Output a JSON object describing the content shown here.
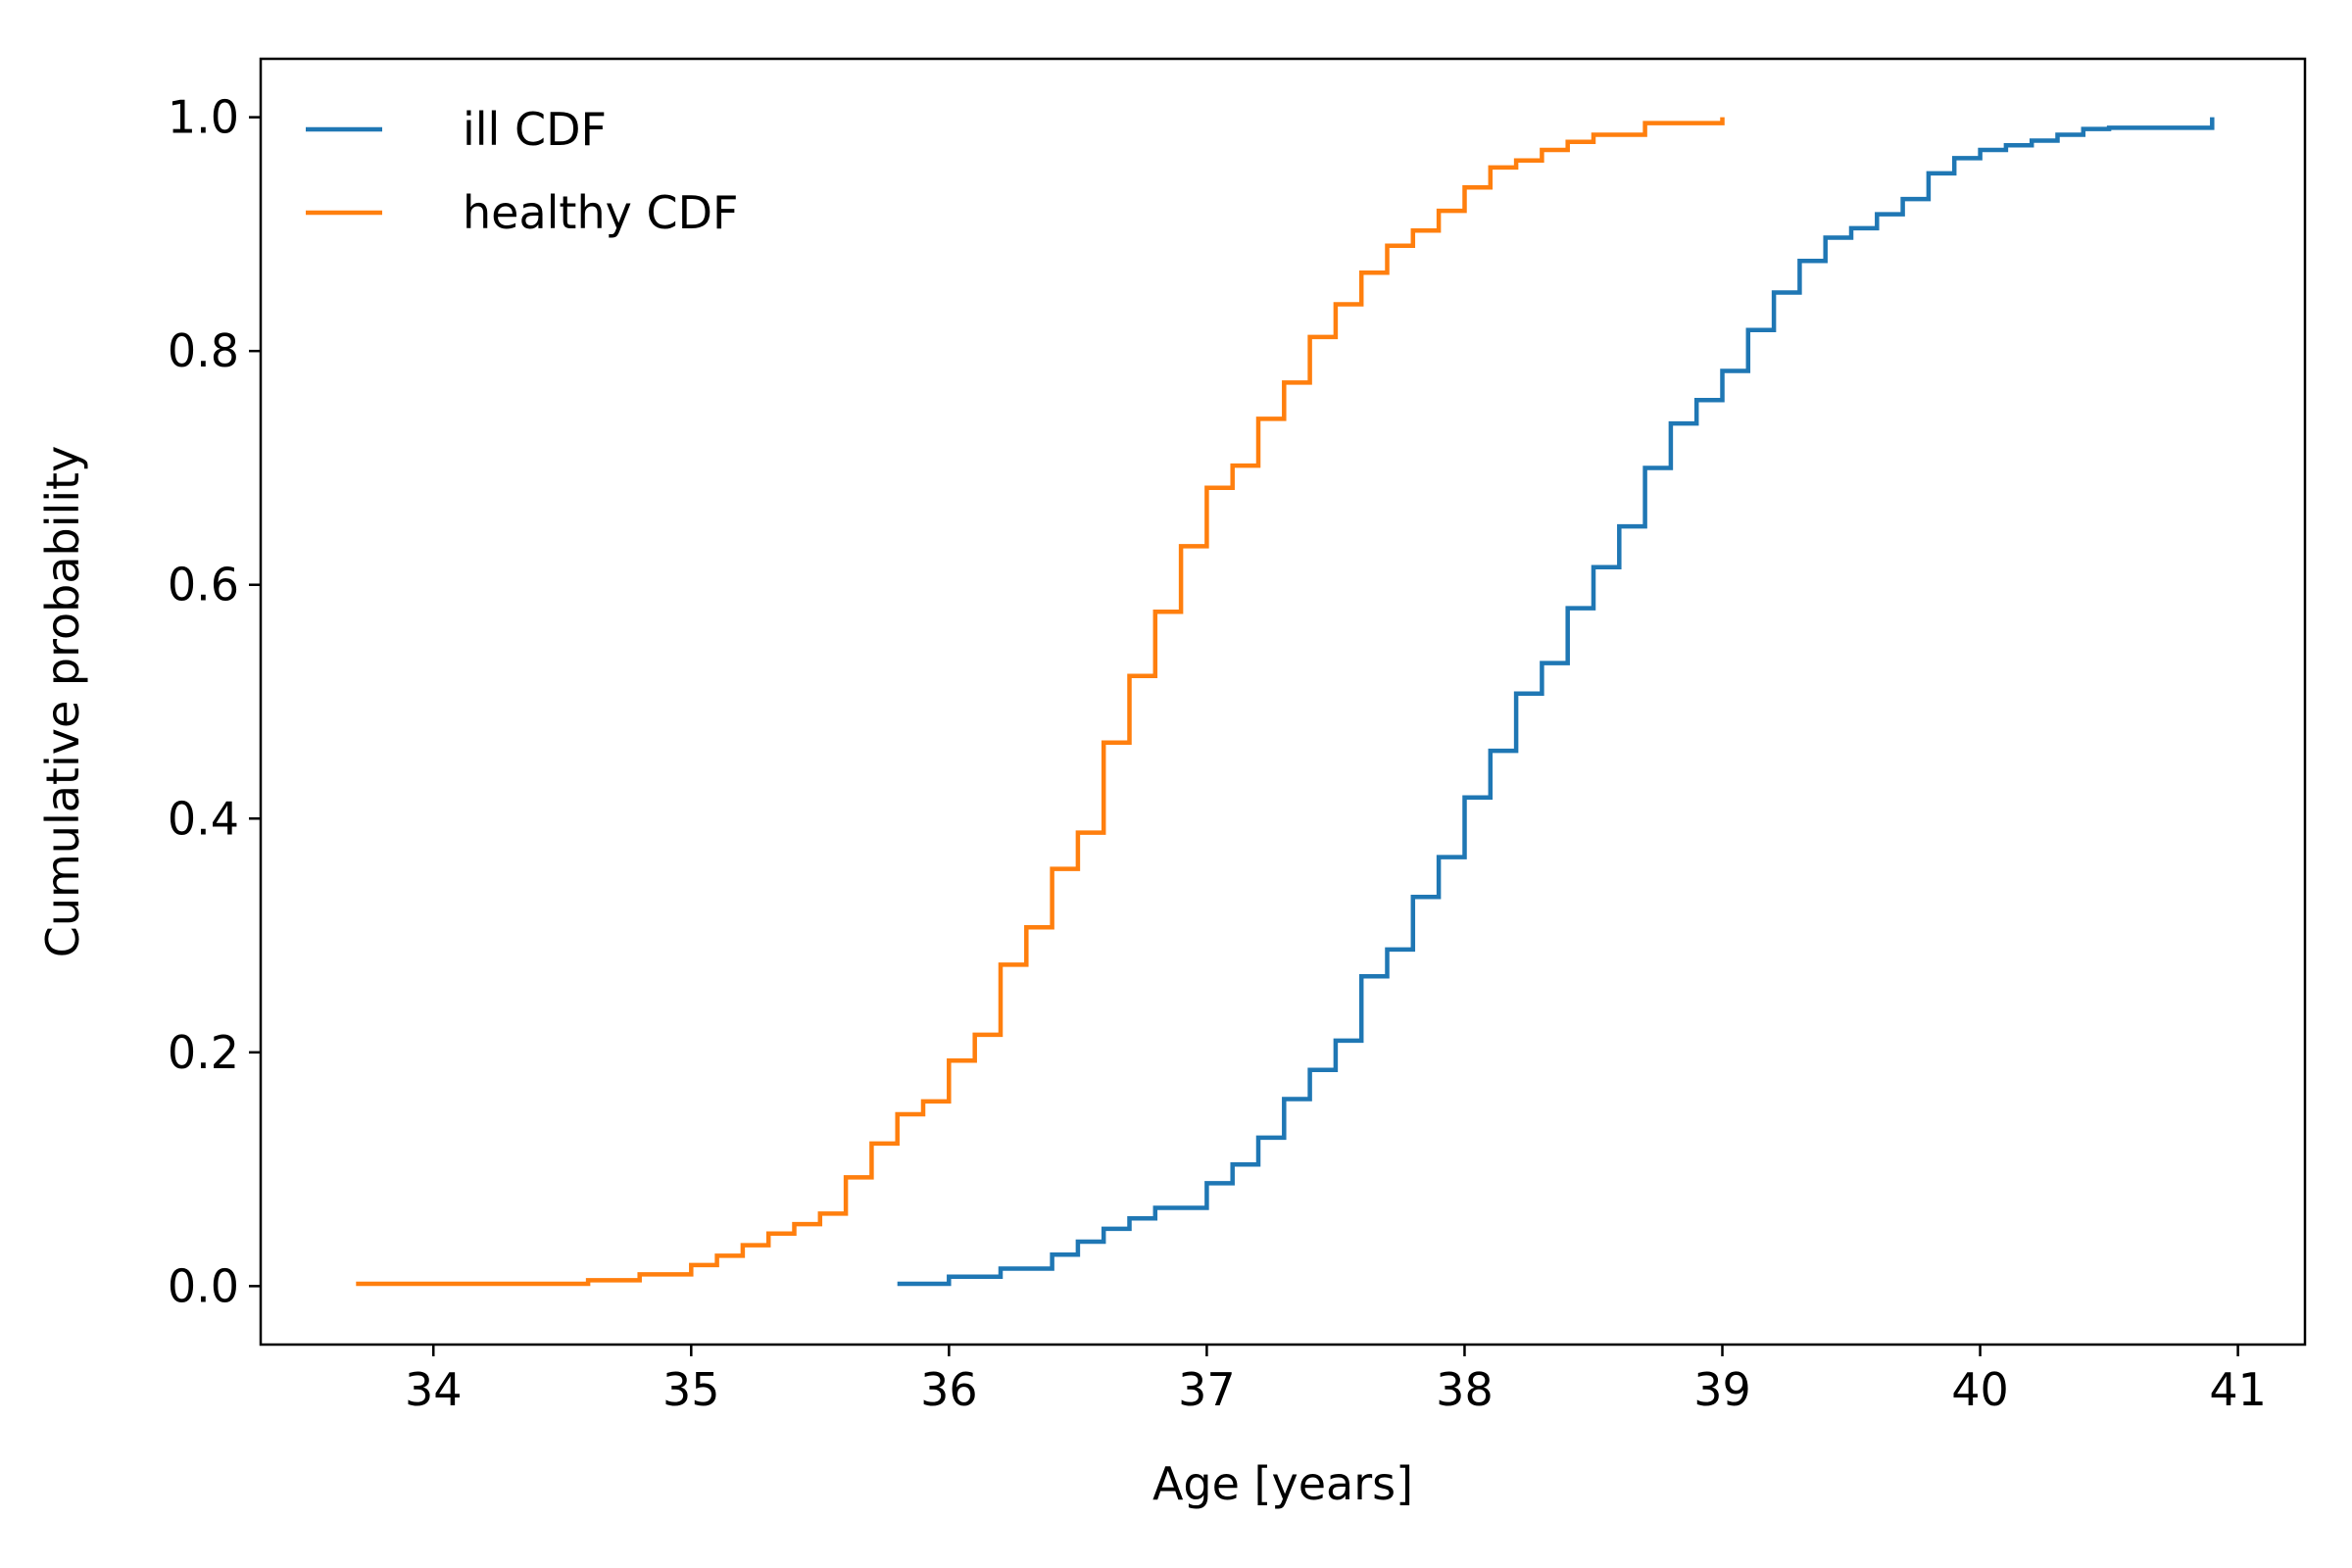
{
  "chart_data": {
    "type": "line",
    "title": "",
    "xlabel": "Age [years]",
    "ylabel": "Cumulative probability",
    "xlim": [
      33.33,
      41.26
    ],
    "ylim": [
      -0.05,
      1.05
    ],
    "x_ticks": [
      34,
      35,
      36,
      37,
      38,
      39,
      40,
      41
    ],
    "y_ticks": [
      0.0,
      0.2,
      0.4,
      0.6,
      0.8,
      1.0
    ],
    "x_tick_labels": [
      "34",
      "35",
      "36",
      "37",
      "38",
      "39",
      "40",
      "41"
    ],
    "y_tick_labels": [
      "0.0",
      "0.2",
      "0.4",
      "0.6",
      "0.8",
      "1.0"
    ],
    "grid": false,
    "legend_position": "top-left",
    "series": [
      {
        "name": "ill CDF",
        "color": "#1f77b4",
        "x": [
          35.8,
          36.0,
          36.2,
          36.4,
          36.5,
          36.6,
          36.7,
          36.8,
          37.0,
          37.1,
          37.2,
          37.3,
          37.4,
          37.5,
          37.6,
          37.7,
          37.8,
          37.9,
          38.0,
          38.1,
          38.2,
          38.3,
          38.4,
          38.5,
          38.6,
          38.7,
          38.8,
          38.9,
          39.0,
          39.1,
          39.2,
          39.3,
          39.4,
          39.5,
          39.6,
          39.7,
          39.8,
          39.9,
          40.0,
          40.1,
          40.2,
          40.3,
          40.4,
          40.5,
          40.9
        ],
        "y": [
          0.002,
          0.008,
          0.015,
          0.027,
          0.038,
          0.049,
          0.058,
          0.067,
          0.088,
          0.104,
          0.127,
          0.16,
          0.185,
          0.21,
          0.265,
          0.288,
          0.333,
          0.367,
          0.418,
          0.458,
          0.507,
          0.533,
          0.58,
          0.615,
          0.65,
          0.7,
          0.738,
          0.758,
          0.783,
          0.818,
          0.85,
          0.877,
          0.897,
          0.905,
          0.917,
          0.93,
          0.952,
          0.965,
          0.972,
          0.976,
          0.98,
          0.985,
          0.99,
          0.991,
          1.0
        ]
      },
      {
        "name": "healthy CDF",
        "color": "#ff7f0e",
        "x": [
          33.7,
          34.6,
          34.8,
          35.0,
          35.1,
          35.2,
          35.3,
          35.4,
          35.5,
          35.6,
          35.7,
          35.8,
          35.9,
          36.0,
          36.1,
          36.2,
          36.3,
          36.4,
          36.5,
          36.6,
          36.7,
          36.8,
          36.9,
          37.0,
          37.1,
          37.2,
          37.3,
          37.4,
          37.5,
          37.6,
          37.7,
          37.8,
          37.9,
          38.0,
          38.1,
          38.2,
          38.3,
          38.4,
          38.5,
          38.7,
          39.0
        ],
        "y": [
          0.002,
          0.005,
          0.01,
          0.018,
          0.026,
          0.035,
          0.045,
          0.053,
          0.062,
          0.093,
          0.122,
          0.147,
          0.158,
          0.193,
          0.215,
          0.275,
          0.307,
          0.357,
          0.388,
          0.465,
          0.522,
          0.577,
          0.633,
          0.683,
          0.702,
          0.742,
          0.773,
          0.812,
          0.84,
          0.867,
          0.89,
          0.903,
          0.92,
          0.94,
          0.957,
          0.963,
          0.972,
          0.979,
          0.985,
          0.995,
          1.0
        ]
      }
    ]
  }
}
